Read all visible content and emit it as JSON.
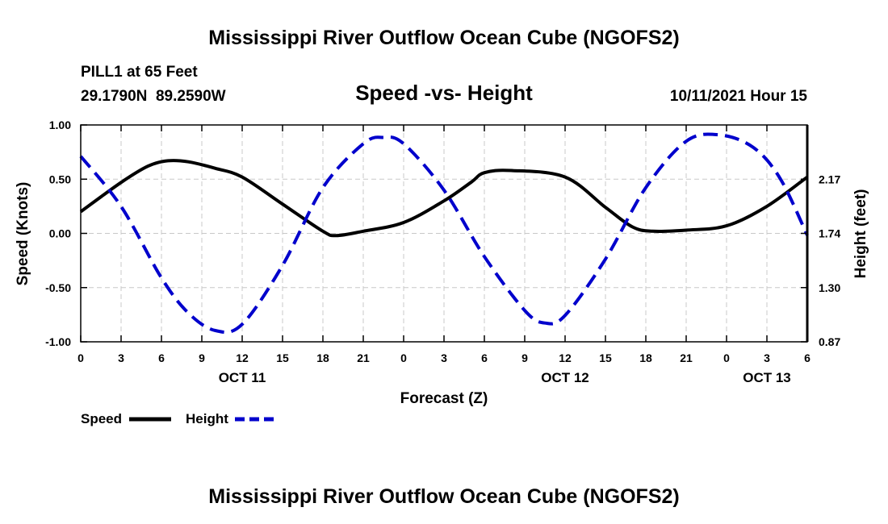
{
  "chart_data": {
    "type": "line",
    "title": "Mississippi River Outflow Ocean Cube (NGOFS2)",
    "footer_title": "Mississippi River Outflow Ocean Cube (NGOFS2)",
    "subtitle": "Speed -vs- Height",
    "station": "PILL1 at 65 Feet",
    "coordinates": "29.1790N  89.2590W",
    "run": "10/11/2021 Hour 15",
    "xlabel": "Forecast (Z)",
    "ylabel": "Speed (Knots)",
    "y2label": "Height (feet)",
    "xlim": [
      0,
      54
    ],
    "ylim": [
      -1.0,
      1.0
    ],
    "y2lim": [
      0.87,
      2.6
    ],
    "x_tick_labels": [
      "0",
      "3",
      "6",
      "9",
      "12",
      "15",
      "18",
      "21",
      "0",
      "3",
      "6",
      "9",
      "12",
      "15",
      "18",
      "21",
      "0",
      "3",
      "6"
    ],
    "y_tick_labels": [
      "1.00",
      "0.50",
      "0.00",
      "-0.50",
      "-1.00"
    ],
    "y2_tick_labels": [
      "2.17",
      "1.74",
      "1.30",
      "0.87"
    ],
    "date_labels": [
      {
        "label": "OCT 11",
        "x": 12
      },
      {
        "label": "OCT 12",
        "x": 36
      },
      {
        "label": "OCT 13",
        "x": 51
      }
    ],
    "grid": true,
    "legend_position": "bottom-left",
    "series": [
      {
        "name": "Speed",
        "axis": "left",
        "color": "#000000",
        "style": "solid",
        "x": [
          0,
          3,
          5,
          6.5,
          8,
          10,
          12,
          15,
          18,
          19,
          21,
          24,
          27,
          29,
          30,
          32,
          36,
          39,
          41,
          42.5,
          45,
          48,
          51,
          54
        ],
        "y": [
          0.2,
          0.47,
          0.62,
          0.67,
          0.66,
          0.6,
          0.52,
          0.27,
          0.02,
          -0.02,
          0.02,
          0.1,
          0.3,
          0.47,
          0.56,
          0.58,
          0.52,
          0.24,
          0.06,
          0.02,
          0.03,
          0.07,
          0.25,
          0.52
        ]
      },
      {
        "name": "Height",
        "axis": "right",
        "color": "#0000cc",
        "style": "dashed",
        "x": [
          0,
          3,
          6,
          8,
          10,
          12,
          15,
          18,
          21,
          22.5,
          24,
          27,
          30,
          33,
          34.5,
          36,
          39,
          42,
          45,
          47.5,
          50,
          52,
          54
        ],
        "y": [
          2.35,
          1.95,
          1.38,
          1.1,
          0.96,
          1.01,
          1.48,
          2.1,
          2.45,
          2.5,
          2.45,
          2.08,
          1.55,
          1.12,
          1.02,
          1.08,
          1.53,
          2.1,
          2.47,
          2.52,
          2.42,
          2.17,
          1.72
        ]
      }
    ]
  }
}
